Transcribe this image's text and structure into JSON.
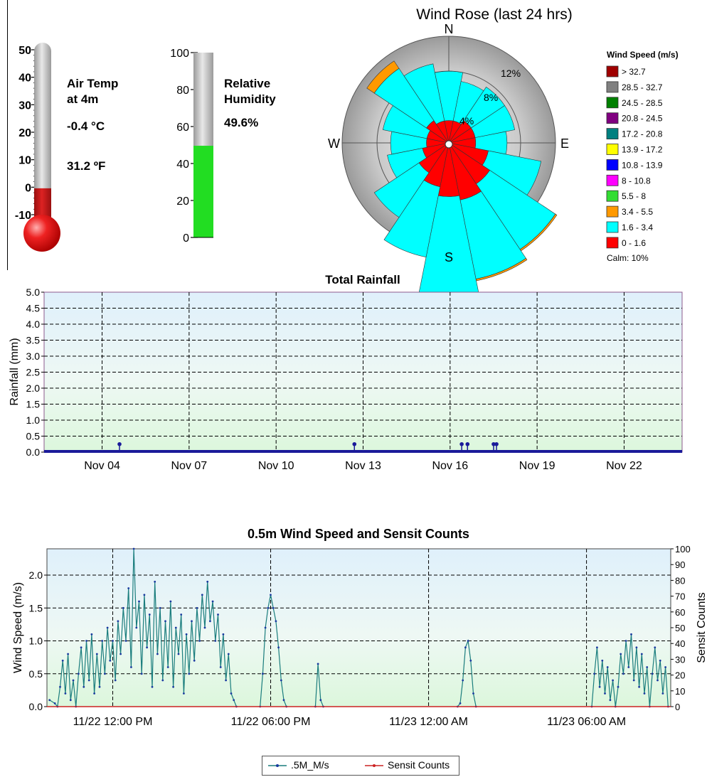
{
  "thermometer": {
    "title_line1": "Air Temp",
    "title_line2": "at 4m",
    "value_c": "-0.4 °C",
    "value_f": "31.2 ºF",
    "ticks": [
      "50",
      "40",
      "30",
      "20",
      "10",
      "0",
      "-10"
    ],
    "value": -0.4,
    "range": [
      -10,
      50
    ],
    "fill_color": "#cc1111"
  },
  "humidity": {
    "title_line1": "Relative",
    "title_line2": "Humidity",
    "value_text": "49.6%",
    "ticks": [
      "100",
      "80",
      "60",
      "40",
      "20",
      "0"
    ],
    "value": 49.6,
    "range": [
      0,
      100
    ],
    "fill_color": "#22dd22"
  },
  "wind_rose": {
    "title": "Wind Rose (last 24 hrs)",
    "directions": [
      "N",
      "E",
      "S",
      "W"
    ],
    "rings": [
      "4%",
      "8%",
      "12%"
    ],
    "legend_title": "Wind Speed (m/s)",
    "legend": [
      {
        "label": "> 32.7",
        "color": "#a00000"
      },
      {
        "label": "28.5 - 32.7",
        "color": "#808080"
      },
      {
        "label": "24.5 - 28.5",
        "color": "#008000"
      },
      {
        "label": "20.8 - 24.5",
        "color": "#800080"
      },
      {
        "label": "17.2 - 20.8",
        "color": "#008080"
      },
      {
        "label": "13.9 - 17.2",
        "color": "#ffff00"
      },
      {
        "label": "10.8 - 13.9",
        "color": "#0000ff"
      },
      {
        "label": "8 - 10.8",
        "color": "#ff00ff"
      },
      {
        "label": "5.5 - 8",
        "color": "#33dd33"
      },
      {
        "label": "3.4 - 5.5",
        "color": "#ff9900"
      },
      {
        "label": "1.6 - 3.4",
        "color": "#00ffff"
      },
      {
        "label": "0 - 1.6",
        "color": "#ff0000"
      }
    ],
    "calm": "Calm: 10%",
    "sectors": [
      {
        "dir": 0,
        "red": 2.5,
        "cyan": 5.5,
        "orange": 0
      },
      {
        "dir": 22.5,
        "red": 2.5,
        "cyan": 4.5,
        "orange": 0
      },
      {
        "dir": 45,
        "red": 3.0,
        "cyan": 4.5,
        "orange": 0
      },
      {
        "dir": 67.5,
        "red": 3.0,
        "cyan": 4.5,
        "orange": 0
      },
      {
        "dir": 90,
        "red": 3.0,
        "cyan": 3.5,
        "orange": 0
      },
      {
        "dir": 112.5,
        "red": 4.5,
        "cyan": 6.0,
        "orange": 0
      },
      {
        "dir": 135,
        "red": 5.5,
        "cyan": 8.8,
        "orange": 0.2
      },
      {
        "dir": 157.5,
        "red": 6.5,
        "cyan": 9.0,
        "orange": 0.2
      },
      {
        "dir": 180,
        "red": 6.0,
        "cyan": 12.0,
        "orange": 0
      },
      {
        "dir": 202.5,
        "red": 5.0,
        "cyan": 8.0,
        "orange": 0
      },
      {
        "dir": 225,
        "red": 4.0,
        "cyan": 6.0,
        "orange": 0
      },
      {
        "dir": 247.5,
        "red": 3.0,
        "cyan": 4.0,
        "orange": 0
      },
      {
        "dir": 270,
        "red": 2.5,
        "cyan": 4.0,
        "orange": 0
      },
      {
        "dir": 292.5,
        "red": 2.5,
        "cyan": 5.0,
        "orange": 0
      },
      {
        "dir": 315,
        "red": 3.0,
        "cyan": 7.0,
        "orange": 1.0
      },
      {
        "dir": 337.5,
        "red": 2.5,
        "cyan": 6.5,
        "orange": 0
      }
    ]
  },
  "chart_data": [
    {
      "type": "scatter",
      "title": "Total Rainfall",
      "ylabel": "Rainfall (mm)",
      "xlabel": "",
      "ylim": [
        0,
        5.0
      ],
      "yticks": [
        "0.0",
        "0.5",
        "1.0",
        "1.5",
        "2.0",
        "2.5",
        "3.0",
        "3.5",
        "4.0",
        "4.5",
        "5.0"
      ],
      "xlim": [
        2.0,
        24.0
      ],
      "xticks": [
        {
          "x": 4.0,
          "label": "Nov 04"
        },
        {
          "x": 7.0,
          "label": "Nov 07"
        },
        {
          "x": 10.0,
          "label": "Nov 10"
        },
        {
          "x": 13.0,
          "label": "Nov 13"
        },
        {
          "x": 16.0,
          "label": "Nov 16"
        },
        {
          "x": 19.0,
          "label": "Nov 19"
        },
        {
          "x": 22.0,
          "label": "Nov 22"
        }
      ],
      "points": [
        {
          "x": 4.6,
          "y": 0.25
        },
        {
          "x": 12.7,
          "y": 0.25
        },
        {
          "x": 16.4,
          "y": 0.25
        },
        {
          "x": 16.6,
          "y": 0.25
        },
        {
          "x": 17.5,
          "y": 0.25
        },
        {
          "x": 17.6,
          "y": 0.25
        }
      ],
      "grid": true
    },
    {
      "type": "line",
      "title": "0.5m Wind Speed and Sensit Counts",
      "ylabel": "Wind Speed (m/s)",
      "y2label": "Sensit Counts",
      "ylim": [
        0,
        2.4
      ],
      "yticks": [
        "0.0",
        "0.5",
        "1.0",
        "1.5",
        "2.0"
      ],
      "y2lim": [
        0,
        100
      ],
      "y2ticks": [
        "0",
        "10",
        "20",
        "30",
        "40",
        "50",
        "60",
        "70",
        "80",
        "90",
        "100"
      ],
      "xlim": [
        9.5,
        33.2
      ],
      "xticks": [
        {
          "x": 12,
          "label": "11/22 12:00 PM"
        },
        {
          "x": 18,
          "label": "11/22 06:00 PM"
        },
        {
          "x": 24,
          "label": "11/23 12:00 AM"
        },
        {
          "x": 30,
          "label": "11/23 06:00 AM"
        }
      ],
      "legend_position": "bottom",
      "series": [
        {
          "name": ".5M_M/s",
          "color": "#1a7d7d",
          "segments": [
            [
              [
                9.6,
                0.1
              ],
              [
                9.8,
                0.05
              ],
              [
                9.9,
                0.0
              ],
              [
                10.0,
                0.3
              ],
              [
                10.1,
                0.7
              ],
              [
                10.2,
                0.2
              ],
              [
                10.3,
                0.8
              ],
              [
                10.4,
                0.1
              ],
              [
                10.5,
                0.4
              ],
              [
                10.6,
                0.0
              ],
              [
                10.7,
                0.5
              ],
              [
                10.8,
                0.9
              ],
              [
                10.9,
                0.3
              ],
              [
                11.0,
                1.0
              ],
              [
                11.1,
                0.4
              ],
              [
                11.2,
                1.1
              ],
              [
                11.3,
                0.2
              ],
              [
                11.4,
                0.8
              ],
              [
                11.5,
                0.3
              ],
              [
                11.6,
                1.0
              ],
              [
                11.7,
                0.5
              ],
              [
                11.8,
                1.2
              ],
              [
                11.9,
                0.7
              ],
              [
                12.0,
                1.0
              ],
              [
                12.1,
                0.4
              ],
              [
                12.2,
                1.3
              ],
              [
                12.3,
                0.8
              ],
              [
                12.4,
                1.5
              ],
              [
                12.5,
                1.0
              ],
              [
                12.6,
                1.8
              ],
              [
                12.7,
                0.6
              ],
              [
                12.8,
                2.4
              ],
              [
                12.9,
                1.2
              ],
              [
                13.0,
                1.6
              ],
              [
                13.1,
                0.5
              ],
              [
                13.2,
                1.7
              ],
              [
                13.3,
                0.9
              ],
              [
                13.4,
                1.4
              ],
              [
                13.5,
                0.3
              ],
              [
                13.6,
                1.9
              ],
              [
                13.7,
                0.8
              ],
              [
                13.8,
                1.5
              ],
              [
                13.9,
                0.4
              ],
              [
                14.0,
                1.3
              ],
              [
                14.1,
                0.6
              ],
              [
                14.2,
                1.6
              ],
              [
                14.3,
                0.3
              ],
              [
                14.4,
                1.2
              ],
              [
                14.5,
                0.8
              ],
              [
                14.6,
                1.4
              ],
              [
                14.7,
                0.2
              ],
              [
                14.8,
                1.1
              ],
              [
                14.9,
                0.5
              ],
              [
                15.0,
                1.3
              ],
              [
                15.1,
                0.7
              ],
              [
                15.2,
                1.5
              ],
              [
                15.3,
                1.0
              ],
              [
                15.4,
                1.7
              ],
              [
                15.5,
                1.2
              ],
              [
                15.6,
                1.9
              ],
              [
                15.7,
                1.3
              ],
              [
                15.8,
                1.6
              ],
              [
                15.9,
                1.0
              ],
              [
                16.0,
                1.4
              ],
              [
                16.1,
                0.6
              ],
              [
                16.2,
                1.1
              ],
              [
                16.3,
                0.4
              ],
              [
                16.4,
                0.8
              ],
              [
                16.5,
                0.2
              ],
              [
                16.6,
                0.1
              ],
              [
                16.7,
                0.0
              ]
            ],
            [
              [
                17.6,
                0.0
              ],
              [
                17.7,
                0.5
              ],
              [
                17.8,
                1.2
              ],
              [
                17.9,
                1.5
              ],
              [
                18.0,
                1.7
              ],
              [
                18.1,
                1.5
              ],
              [
                18.2,
                1.3
              ],
              [
                18.3,
                0.9
              ],
              [
                18.4,
                0.4
              ],
              [
                18.5,
                0.1
              ],
              [
                18.6,
                0.0
              ]
            ],
            [
              [
                19.7,
                0.0
              ],
              [
                19.8,
                0.65
              ],
              [
                19.9,
                0.1
              ],
              [
                20.0,
                0.0
              ]
            ],
            [
              [
                25.1,
                0.0
              ],
              [
                25.2,
                0.05
              ],
              [
                25.3,
                0.4
              ],
              [
                25.4,
                0.9
              ],
              [
                25.5,
                1.0
              ],
              [
                25.6,
                0.7
              ],
              [
                25.7,
                0.2
              ],
              [
                25.8,
                0.0
              ]
            ],
            [
              [
                30.2,
                0.0
              ],
              [
                30.3,
                0.5
              ],
              [
                30.4,
                0.9
              ],
              [
                30.5,
                0.3
              ],
              [
                30.6,
                0.7
              ],
              [
                30.7,
                0.2
              ],
              [
                30.8,
                0.6
              ],
              [
                30.9,
                0.1
              ],
              [
                31.0,
                0.4
              ],
              [
                31.1,
                0.0
              ],
              [
                31.2,
                0.3
              ],
              [
                31.3,
                0.8
              ],
              [
                31.4,
                0.5
              ],
              [
                31.5,
                1.0
              ],
              [
                31.6,
                0.6
              ],
              [
                31.7,
                1.1
              ],
              [
                31.8,
                0.4
              ],
              [
                31.9,
                0.9
              ],
              [
                32.0,
                0.3
              ],
              [
                32.1,
                0.8
              ],
              [
                32.2,
                0.2
              ],
              [
                32.3,
                0.6
              ],
              [
                32.4,
                0.0
              ],
              [
                32.5,
                0.5
              ],
              [
                32.6,
                0.9
              ],
              [
                32.7,
                0.4
              ],
              [
                32.8,
                0.7
              ],
              [
                32.9,
                0.2
              ],
              [
                33.0,
                0.6
              ],
              [
                33.1,
                0.0
              ]
            ]
          ]
        },
        {
          "name": "Sensit Counts",
          "color": "#cc2222",
          "points": [
            [
              9.5,
              0
            ],
            [
              33.2,
              0
            ]
          ]
        }
      ],
      "grid": true
    }
  ]
}
